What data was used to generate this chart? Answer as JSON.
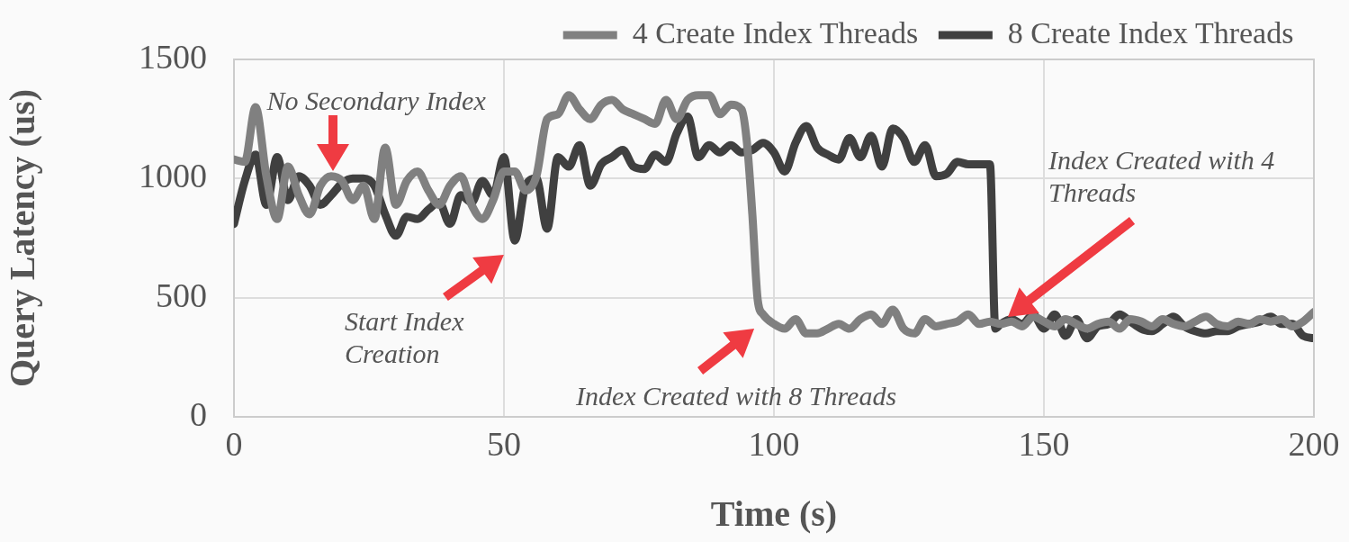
{
  "chart_data": {
    "type": "line",
    "xlabel": "Time (s)",
    "ylabel": "Query Latency (us)",
    "xlim": [
      0,
      200
    ],
    "xticks": [
      0,
      50,
      100,
      150,
      200
    ],
    "ylim": [
      0,
      1500
    ],
    "yticks": [
      0,
      500,
      1000,
      1500
    ],
    "grid": true,
    "legend": "top",
    "marker": "none",
    "annotations": [
      "No Secondary Index",
      "Start Index Creation",
      "Index Created with 8 Threads",
      "Index Created with 4 Threads"
    ],
    "series": [
      {
        "name": "4 Create Index Threads",
        "color": "#808080",
        "x": [
          0,
          2,
          4,
          6,
          8,
          10,
          12,
          14,
          16,
          18,
          20,
          22,
          24,
          26,
          28,
          30,
          32,
          34,
          36,
          38,
          40,
          42,
          44,
          46,
          48,
          50,
          52,
          54,
          56,
          58,
          60,
          62,
          64,
          66,
          68,
          70,
          72,
          74,
          76,
          78,
          80,
          82,
          84,
          86,
          88,
          90,
          92,
          94,
          95,
          96,
          97,
          98,
          100,
          102,
          104,
          106,
          108,
          110,
          112,
          114,
          116,
          118,
          120,
          122,
          124,
          126,
          128,
          130,
          132,
          134,
          136,
          138,
          140,
          142,
          144,
          146,
          148,
          150,
          152,
          154,
          156,
          158,
          160,
          162,
          164,
          166,
          168,
          170,
          172,
          174,
          176,
          178,
          180,
          182,
          184,
          186,
          188,
          190,
          192,
          194,
          196,
          198,
          200
        ],
        "values": [
          1080,
          1070,
          1300,
          1010,
          830,
          1050,
          930,
          850,
          970,
          1010,
          990,
          910,
          970,
          830,
          1130,
          890,
          990,
          1030,
          950,
          890,
          970,
          1010,
          890,
          830,
          910,
          1030,
          1030,
          950,
          1010,
          1250,
          1270,
          1350,
          1290,
          1250,
          1310,
          1330,
          1290,
          1270,
          1250,
          1230,
          1330,
          1250,
          1330,
          1350,
          1350,
          1270,
          1310,
          1290,
          1150,
          850,
          490,
          430,
          390,
          370,
          410,
          350,
          350,
          370,
          390,
          370,
          410,
          430,
          390,
          450,
          370,
          350,
          410,
          380,
          390,
          400,
          430,
          390,
          400,
          390,
          400,
          380,
          420,
          400,
          380,
          410,
          390,
          370,
          390,
          400,
          370,
          410,
          400,
          380,
          410,
          390,
          380,
          400,
          420,
          390,
          380,
          400,
          390,
          410,
          400,
          410,
          380,
          400,
          440
        ]
      },
      {
        "name": "8 Create Index Threads",
        "color": "#404040",
        "x": [
          0,
          2,
          4,
          6,
          8,
          10,
          12,
          14,
          16,
          18,
          20,
          22,
          24,
          26,
          28,
          30,
          32,
          34,
          36,
          38,
          40,
          42,
          44,
          46,
          48,
          50,
          52,
          54,
          56,
          58,
          60,
          62,
          64,
          66,
          68,
          70,
          72,
          74,
          76,
          78,
          80,
          82,
          84,
          86,
          88,
          90,
          92,
          94,
          96,
          98,
          100,
          102,
          104,
          106,
          108,
          110,
          112,
          114,
          116,
          118,
          120,
          122,
          124,
          126,
          128,
          130,
          132,
          134,
          136,
          138,
          140,
          141,
          142,
          144,
          146,
          148,
          150,
          152,
          154,
          156,
          158,
          160,
          162,
          164,
          166,
          168,
          170,
          172,
          174,
          176,
          178,
          180,
          182,
          184,
          186,
          188,
          190,
          192,
          194,
          196,
          198,
          200
        ],
        "values": [
          810,
          990,
          1100,
          890,
          1090,
          910,
          1010,
          970,
          890,
          930,
          980,
          1000,
          1000,
          970,
          850,
          760,
          840,
          830,
          870,
          900,
          810,
          930,
          900,
          990,
          930,
          1090,
          740,
          970,
          1000,
          790,
          1090,
          1050,
          1140,
          970,
          1060,
          1090,
          1120,
          1050,
          1040,
          1100,
          1070,
          1190,
          1260,
          1090,
          1140,
          1110,
          1140,
          1110,
          1120,
          1150,
          1110,
          1030,
          1150,
          1220,
          1130,
          1100,
          1080,
          1170,
          1090,
          1180,
          1050,
          1210,
          1170,
          1070,
          1140,
          1010,
          1020,
          1070,
          1060,
          1060,
          1060,
          370,
          390,
          410,
          390,
          430,
          370,
          430,
          340,
          410,
          330,
          380,
          390,
          430,
          400,
          370,
          360,
          390,
          420,
          380,
          360,
          350,
          360,
          360,
          380,
          390,
          400,
          420,
          390,
          390,
          340,
          330
        ]
      }
    ]
  }
}
